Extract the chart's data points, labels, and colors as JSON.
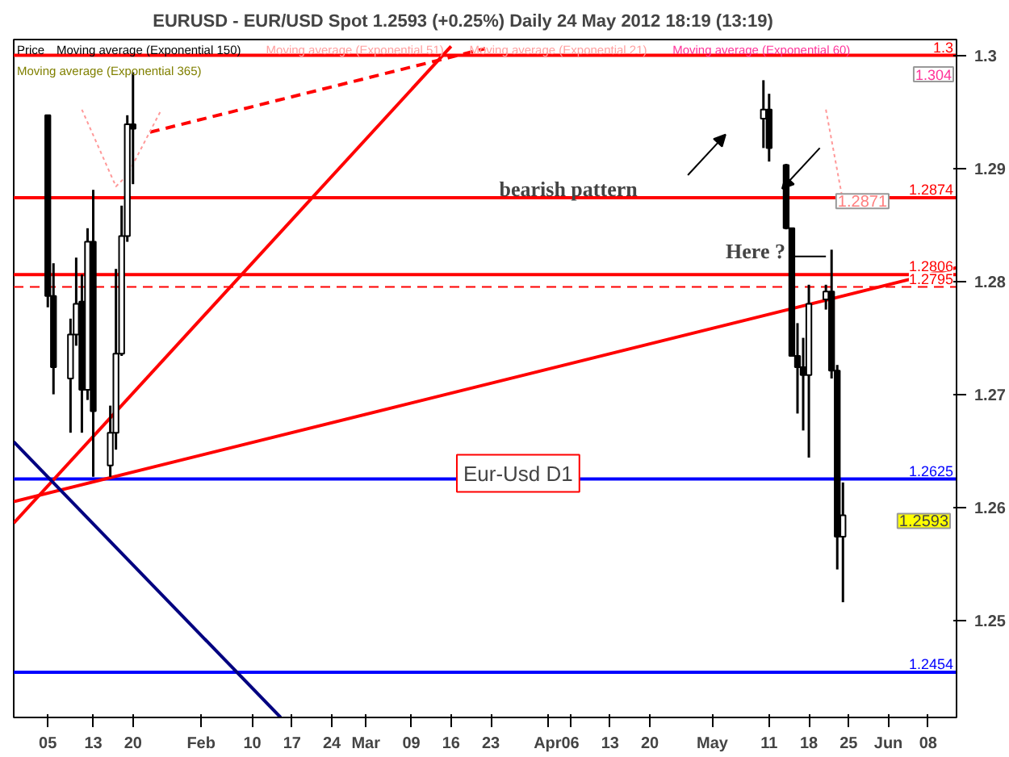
{
  "chart_data": {
    "type": "candlestick",
    "title": "EURUSD - EUR/USD Spot     1.2593 (+0.25%)     Daily  24 May 2012 18:19 (13:19)",
    "x": [
      "2012-01-05",
      "2012-01-06",
      "2012-01-09",
      "2012-01-10",
      "2012-01-11",
      "2012-01-12",
      "2012-01-13",
      "2012-01-16",
      "2012-01-17",
      "2012-01-18",
      "2012-01-19",
      "2012-01-20",
      "2012-05-10",
      "2012-05-11",
      "2012-05-14",
      "2012-05-15",
      "2012-05-16",
      "2012-05-17",
      "2012-05-18",
      "2012-05-21",
      "2012-05-22",
      "2012-05-23",
      "2012-05-24"
    ],
    "ohlc": [
      [
        1.2947,
        1.2947,
        1.2777,
        1.2787
      ],
      [
        1.2787,
        1.2816,
        1.27,
        1.2724
      ],
      [
        1.2714,
        1.2767,
        1.2666,
        1.2753
      ],
      [
        1.2753,
        1.2821,
        1.2743,
        1.278
      ],
      [
        1.2782,
        1.2806,
        1.2666,
        1.2704
      ],
      [
        1.2704,
        1.2847,
        1.2695,
        1.2835
      ],
      [
        1.2835,
        1.2881,
        1.2627,
        1.2685
      ],
      [
        1.2637,
        1.269,
        1.2627,
        1.2666
      ],
      [
        1.2666,
        1.2811,
        1.2651,
        1.2736
      ],
      [
        1.2736,
        1.2867,
        1.2734,
        1.284
      ],
      [
        1.284,
        1.2947,
        1.2835,
        1.2939
      ],
      [
        1.2939,
        1.2985,
        1.2886,
        1.2935
      ],
      [
        1.2944,
        1.2978,
        1.2918,
        1.2952
      ],
      [
        1.2952,
        1.2966,
        1.2906,
        1.2918
      ],
      [
        1.2903,
        1.2904,
        1.2846,
        1.2847
      ],
      [
        1.2847,
        1.2847,
        1.2734,
        1.2734
      ],
      [
        1.2734,
        1.2763,
        1.2683,
        1.2724
      ],
      [
        1.2724,
        1.275,
        1.2668,
        1.2717
      ],
      [
        1.2717,
        1.2797,
        1.2644,
        1.278
      ],
      [
        1.2784,
        1.2797,
        1.2775,
        1.2791
      ],
      [
        1.2791,
        1.2828,
        1.2714,
        1.2721
      ],
      [
        1.2721,
        1.2726,
        1.2545,
        1.2574
      ],
      [
        1.2574,
        1.2622,
        1.2516,
        1.2593
      ]
    ],
    "series": [
      {
        "type": "line",
        "color": "#ff0000",
        "x": [
          "2011-12-30",
          "2012-03-16"
        ],
        "values": [
          1.2586,
          1.3008
        ]
      },
      {
        "type": "line",
        "color": "#ff0000",
        "x": [
          "2011-12-30",
          "2012-06-13"
        ],
        "values": [
          1.2605,
          1.2812
        ]
      },
      {
        "type": "line",
        "color": "#ff0000",
        "line_style": "dashed",
        "x": [
          "2012-01-23",
          "2012-03-22"
        ],
        "values": [
          1.2932,
          1.3006
        ]
      },
      {
        "type": "line",
        "color": "#000080",
        "x": [
          "2011-12-30",
          "2012-02-15"
        ],
        "values": [
          1.2658,
          1.2414
        ]
      },
      {
        "type": "line",
        "color": "#ff9999",
        "line_style": "dotted",
        "x": [
          "2012-01-11",
          "2012-01-17",
          "2012-01-19",
          "2012-01-25",
          "2012-03-15",
          "2012-05-21",
          "2012-05-24"
        ],
        "values": [
          1.2952,
          1.2884,
          1.2894,
          1.2952,
          null,
          1.2952,
          1.2871
        ]
      }
    ],
    "xlim": [
      "2011-12-30",
      "2012-06-13"
    ],
    "xticks": [
      {
        "value": "2012-01-05",
        "label": "05"
      },
      {
        "value": "2012-01-13",
        "label": "13"
      },
      {
        "value": "2012-01-20",
        "label": "20"
      },
      {
        "value": "2012-02-01",
        "label": "Feb"
      },
      {
        "value": "2012-02-10",
        "label": "10"
      },
      {
        "value": "2012-02-17",
        "label": "17"
      },
      {
        "value": "2012-02-24",
        "label": "24"
      },
      {
        "value": "2012-03-01",
        "label": "Mar"
      },
      {
        "value": "2012-03-09",
        "label": "09"
      },
      {
        "value": "2012-03-16",
        "label": "16"
      },
      {
        "value": "2012-03-23",
        "label": "23"
      },
      {
        "value": "2012-04-02",
        "label": "Apr"
      },
      {
        "value": "2012-04-06",
        "label": "06"
      },
      {
        "value": "2012-04-13",
        "label": "13"
      },
      {
        "value": "2012-04-20",
        "label": "20"
      },
      {
        "value": "2012-05-01",
        "label": "May"
      },
      {
        "value": "2012-05-11",
        "label": "11"
      },
      {
        "value": "2012-05-18",
        "label": "18"
      },
      {
        "value": "2012-05-25",
        "label": "25"
      },
      {
        "value": "2012-06-01",
        "label": "Jun"
      },
      {
        "value": "2012-06-08",
        "label": "08"
      }
    ],
    "ylim": [
      1.2414,
      1.3014
    ],
    "yticks": [
      1.25,
      1.26,
      1.27,
      1.28,
      1.29,
      1.3
    ],
    "ref_lines": [
      {
        "axis": "y",
        "value": 1.3,
        "label": "1.3",
        "color": "#ff0000"
      },
      {
        "axis": "y",
        "value": 1.2874,
        "label": "1.2874",
        "color": "#ff0000"
      },
      {
        "axis": "y",
        "value": 1.2806,
        "label": "1.2806",
        "color": "#ff0000"
      },
      {
        "axis": "y",
        "value": 1.2795,
        "label": "1.2795",
        "color": "#ff0000",
        "line_style": "dashed"
      },
      {
        "axis": "y",
        "value": 1.2625,
        "label": "1.2625",
        "color": "#0000ff"
      },
      {
        "axis": "y",
        "value": 1.2454,
        "label": "1.2454",
        "color": "#0000ff"
      }
    ],
    "annotations": [
      "Price",
      "Moving average (Exponential 150)",
      "Moving average (Exponential 51)",
      "Moving average (Exponential 21)",
      "Moving average (Exponential 60)",
      "Moving average (Exponential 365)",
      "Eur-Usd D1",
      "1.304",
      "bearish pattern",
      "1.2593",
      {
        "text": "Here ?",
        "x": "2012-05-21",
        "y": 1.2822
      },
      {
        "text": "1.2871",
        "y": 1.2871
      }
    ],
    "grid": false
  }
}
